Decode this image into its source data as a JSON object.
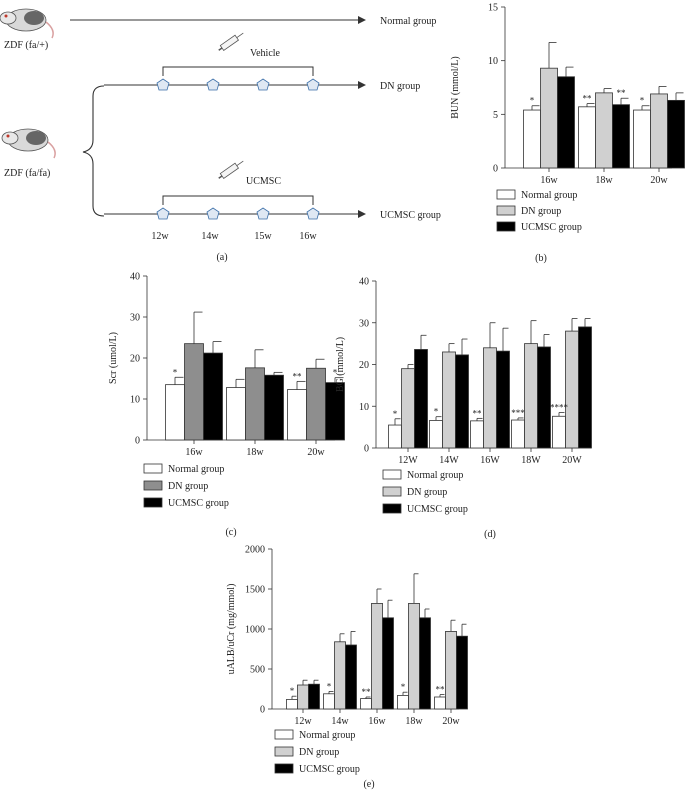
{
  "colors": {
    "normal": "#ffffff",
    "dn_light": "#d0d0d0",
    "dn_dark": "#8e8e8e",
    "ucmsc": "#000000",
    "axis": "#333333"
  },
  "schematic": {
    "rat_top_label": "ZDF (fa/+)",
    "rat_bottom_label": "ZDF (fa/fa)",
    "normal_group": "Normal group",
    "dn_group": "DN group",
    "ucmsc_group": "UCMSC group",
    "vehicle": "Vehicle",
    "ucmsc": "UCMSC",
    "timepoints": [
      "12w",
      "14w",
      "15w",
      "16w"
    ],
    "panel_label": "(a)"
  },
  "chart_data": [
    {
      "id": "b",
      "type": "bar",
      "panel_label": "(b)",
      "title": "",
      "xlabel": "",
      "ylabel": "BUN (mmol/L)",
      "ylim": [
        0,
        15
      ],
      "yticks": [
        0,
        5,
        10,
        15
      ],
      "categories": [
        "16w",
        "18w",
        "20w"
      ],
      "series": [
        {
          "name": "Normal group",
          "values": [
            5.4,
            5.7,
            5.4
          ],
          "errors": [
            0.4,
            0.3,
            0.4
          ]
        },
        {
          "name": "DN group",
          "values": [
            9.3,
            7.0,
            6.9
          ],
          "errors": [
            2.4,
            0.4,
            0.7
          ]
        },
        {
          "name": "UCMSC group",
          "values": [
            8.5,
            5.9,
            6.3
          ],
          "errors": [
            0.9,
            0.6,
            0.7
          ]
        }
      ],
      "annotations": [
        {
          "series": 0,
          "index": 0,
          "text": "*"
        },
        {
          "series": 0,
          "index": 1,
          "text": "**"
        },
        {
          "series": 2,
          "index": 1,
          "text": "**"
        },
        {
          "series": 0,
          "index": 2,
          "text": "*"
        }
      ],
      "legend": [
        "Normal group",
        "DN group",
        "UCMSC group"
      ],
      "legend_position": "bottom"
    },
    {
      "id": "c",
      "type": "bar",
      "panel_label": "(c)",
      "title": "",
      "xlabel": "",
      "ylabel": "Scr (umol/L)",
      "ylim": [
        0,
        40
      ],
      "yticks": [
        0,
        10,
        20,
        30,
        40
      ],
      "categories": [
        "16w",
        "18w",
        "20w"
      ],
      "series": [
        {
          "name": "Normal group",
          "values": [
            13.5,
            12.8,
            12.3
          ],
          "errors": [
            1.8,
            2.0,
            2.0
          ]
        },
        {
          "name": "DN group",
          "values": [
            23.5,
            17.6,
            17.5
          ],
          "errors": [
            7.7,
            4.4,
            2.2
          ]
        },
        {
          "name": "UCMSC group",
          "values": [
            21.2,
            15.8,
            14.0
          ],
          "errors": [
            2.8,
            0.7,
            1.2
          ]
        }
      ],
      "annotations": [
        {
          "series": 0,
          "index": 0,
          "text": "*"
        },
        {
          "series": 0,
          "index": 2,
          "text": "**"
        },
        {
          "series": 2,
          "index": 2,
          "text": "*"
        }
      ],
      "legend": [
        "Normal group",
        "DN group",
        "UCMSC group"
      ],
      "legend_position": "bottom"
    },
    {
      "id": "d",
      "type": "bar",
      "panel_label": "(d)",
      "title": "",
      "xlabel": "",
      "ylabel": "BG (mmol/L)",
      "ylim": [
        0,
        40
      ],
      "yticks": [
        0,
        10,
        20,
        30,
        40
      ],
      "categories": [
        "12W",
        "14W",
        "16W",
        "18W",
        "20W"
      ],
      "series": [
        {
          "name": "Normal group",
          "values": [
            5.5,
            6.6,
            6.5,
            6.7,
            7.6
          ],
          "errors": [
            1.5,
            0.9,
            0.6,
            0.5,
            0.9
          ]
        },
        {
          "name": "DN group",
          "values": [
            19.0,
            23.0,
            24.0,
            25.0,
            28.0
          ],
          "errors": [
            1.0,
            2.0,
            6.0,
            5.5,
            3.0
          ]
        },
        {
          "name": "UCMSC group",
          "values": [
            23.6,
            22.3,
            23.2,
            24.2,
            29.0
          ],
          "errors": [
            3.4,
            3.8,
            5.5,
            3.0,
            2.0
          ]
        }
      ],
      "annotations": [
        {
          "series": 0,
          "index": 0,
          "text": "*"
        },
        {
          "series": 0,
          "index": 1,
          "text": "*"
        },
        {
          "series": 0,
          "index": 2,
          "text": "**"
        },
        {
          "series": 0,
          "index": 3,
          "text": "***"
        },
        {
          "series": 0,
          "index": 4,
          "text": "****"
        }
      ],
      "legend": [
        "Normal group",
        "DN group",
        "UCMSC group"
      ],
      "legend_position": "bottom"
    },
    {
      "id": "e",
      "type": "bar",
      "panel_label": "(e)",
      "title": "",
      "xlabel": "",
      "ylabel": "uALB/uCr (mg/mmol)",
      "ylim": [
        0,
        2000
      ],
      "yticks": [
        0,
        500,
        1000,
        1500,
        2000
      ],
      "categories": [
        "12w",
        "14w",
        "16w",
        "18w",
        "20w"
      ],
      "series": [
        {
          "name": "Normal group",
          "values": [
            120,
            190,
            130,
            170,
            150
          ],
          "errors": [
            40,
            30,
            20,
            40,
            30
          ]
        },
        {
          "name": "DN group",
          "values": [
            300,
            840,
            1320,
            1320,
            970
          ],
          "errors": [
            60,
            100,
            180,
            370,
            140
          ]
        },
        {
          "name": "UCMSC group",
          "values": [
            310,
            800,
            1140,
            1140,
            910
          ],
          "errors": [
            50,
            170,
            220,
            110,
            150
          ]
        }
      ],
      "annotations": [
        {
          "series": 0,
          "index": 0,
          "text": "*"
        },
        {
          "series": 0,
          "index": 1,
          "text": "*"
        },
        {
          "series": 0,
          "index": 2,
          "text": "**"
        },
        {
          "series": 0,
          "index": 3,
          "text": "*"
        },
        {
          "series": 0,
          "index": 4,
          "text": "**"
        }
      ],
      "legend": [
        "Normal group",
        "DN group",
        "UCMSC group"
      ],
      "legend_position": "bottom"
    }
  ]
}
